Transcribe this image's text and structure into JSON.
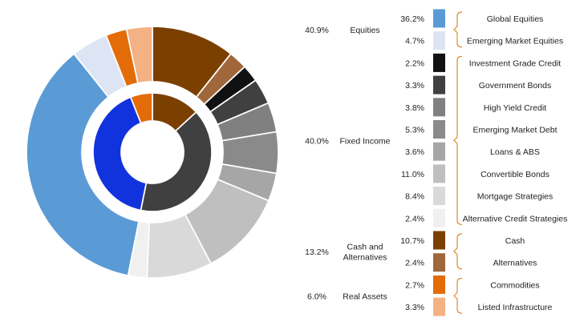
{
  "chart_data": {
    "type": "pie",
    "variant": "nested-donut",
    "title": "",
    "groups": [
      {
        "name": "Equities",
        "pct_label": "40.9%",
        "value": 40.9,
        "color": "#1133dd",
        "items": [
          {
            "name": "Global Equities",
            "pct_label": "36.2%",
            "value": 36.2,
            "color": "#5b9bd5"
          },
          {
            "name": "Emerging Market Equities",
            "pct_label": "4.7%",
            "value": 4.7,
            "color": "#dde5f5"
          }
        ]
      },
      {
        "name": "Fixed Income",
        "pct_label": "40.0%",
        "value": 40.0,
        "color": "#404040",
        "items": [
          {
            "name": "Investment Grade Credit",
            "pct_label": "2.2%",
            "value": 2.2,
            "color": "#111111"
          },
          {
            "name": "Government Bonds",
            "pct_label": "3.3%",
            "value": 3.3,
            "color": "#404040"
          },
          {
            "name": "High Yield Credit",
            "pct_label": "3.8%",
            "value": 3.8,
            "color": "#808080"
          },
          {
            "name": "Emerging Market Debt",
            "pct_label": "5.3%",
            "value": 5.3,
            "color": "#8a8a8a"
          },
          {
            "name": "Loans & ABS",
            "pct_label": "3.6%",
            "value": 3.6,
            "color": "#a6a6a6"
          },
          {
            "name": "Convertible Bonds",
            "pct_label": "11.0%",
            "value": 11.0,
            "color": "#bfbfbf"
          },
          {
            "name": "Mortgage Strategies",
            "pct_label": "8.4%",
            "value": 8.4,
            "color": "#d9d9d9"
          },
          {
            "name": "Alternative Credit Strategies",
            "pct_label": "2.4%",
            "value": 2.4,
            "color": "#f0f0f0"
          }
        ]
      },
      {
        "name": "Cash and Alternatives",
        "label_lines": [
          "Cash and",
          "Alternatives"
        ],
        "pct_label": "13.2%",
        "value": 13.2,
        "color": "#7b3f00",
        "items": [
          {
            "name": "Cash",
            "pct_label": "10.7%",
            "value": 10.7,
            "color": "#7b3f00"
          },
          {
            "name": "Alternatives",
            "pct_label": "2.4%",
            "value": 2.4,
            "color": "#a0673a"
          }
        ]
      },
      {
        "name": "Real Assets",
        "pct_label": "6.0%",
        "value": 6.0,
        "color": "#e36c09",
        "items": [
          {
            "name": "Commodities",
            "pct_label": "2.7%",
            "value": 2.7,
            "color": "#e36c09"
          },
          {
            "name": "Listed Infrastructure",
            "pct_label": "3.3%",
            "value": 3.3,
            "color": "#f4b183"
          }
        ]
      }
    ],
    "bracket_color": "#e08a2e",
    "legend_position": "right"
  }
}
